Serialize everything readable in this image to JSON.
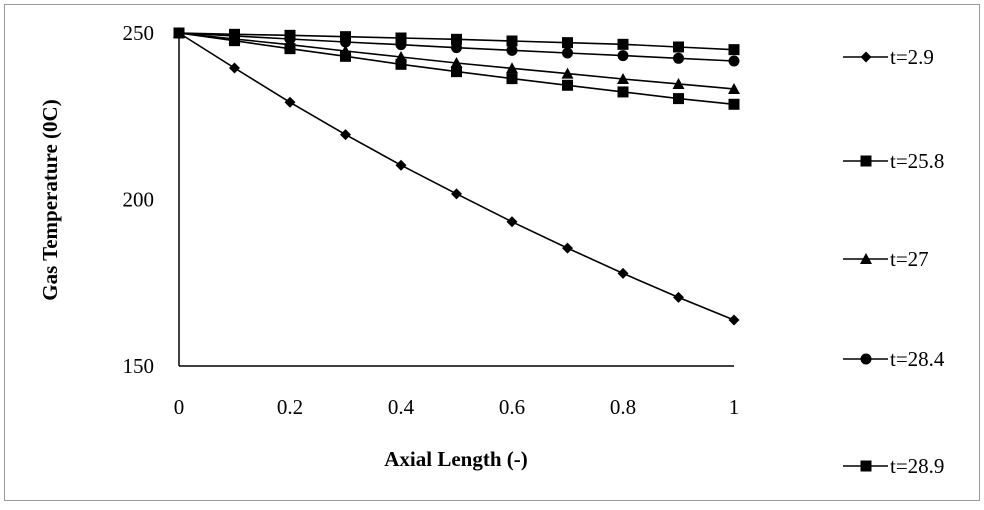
{
  "chart_data": {
    "type": "line",
    "title": "",
    "xlabel": "Axial Length (-)",
    "ylabel": "Gas Temperature (0C)",
    "xlim": [
      0,
      1
    ],
    "ylim": [
      150,
      250
    ],
    "x_ticks": [
      "0",
      "0.2",
      "0.4",
      "0.6",
      "0.8",
      "1"
    ],
    "y_ticks": [
      "150",
      "200",
      "250"
    ],
    "grid": false,
    "legend_position": "right",
    "x": [
      0,
      0.1,
      0.2,
      0.3,
      0.4,
      0.5,
      0.6,
      0.7,
      0.8,
      0.9,
      1
    ],
    "series": [
      {
        "name": "t=2.9",
        "marker": "diamond",
        "values": [
          250,
          239.5,
          229.2,
          219.5,
          210.3,
          201.7,
          193.3,
          185.4,
          177.8,
          170.6,
          163.8
        ]
      },
      {
        "name": "t=25.8",
        "marker": "square",
        "values": [
          250,
          247.7,
          245.3,
          243.0,
          240.6,
          238.4,
          236.3,
          234.3,
          232.3,
          230.3,
          228.6
        ]
      },
      {
        "name": "t=27",
        "marker": "triangle",
        "values": [
          250,
          248.2,
          246.5,
          244.6,
          242.8,
          241.0,
          239.4,
          237.8,
          236.2,
          234.7,
          233.2
        ]
      },
      {
        "name": "t=28.4",
        "marker": "circle",
        "values": [
          250,
          249.1,
          248.2,
          247.3,
          246.5,
          245.6,
          244.8,
          244.0,
          243.2,
          242.4,
          241.6
        ]
      },
      {
        "name": "t=28.9",
        "marker": "square",
        "values": [
          250,
          249.6,
          249.3,
          248.9,
          248.5,
          248.1,
          247.6,
          247.1,
          246.6,
          245.8,
          245.0
        ]
      }
    ]
  }
}
